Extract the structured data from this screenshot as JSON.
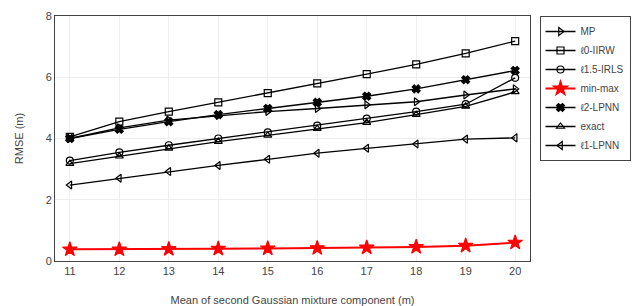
{
  "chart_data": {
    "type": "line",
    "x_label": "Mean of second Gaussian mixture component (m)",
    "y_label": "RMSE (m)",
    "x": [
      11,
      12,
      13,
      14,
      15,
      16,
      17,
      18,
      19,
      20
    ],
    "series": [
      {
        "name": "MP",
        "color": "black",
        "marker": "triangle-right",
        "line_style": "solid",
        "values": [
          4.0,
          4.35,
          4.6,
          4.75,
          4.88,
          4.98,
          5.1,
          5.2,
          5.42,
          5.62
        ]
      },
      {
        "name": "ℓ0-IIRW",
        "color": "black",
        "marker": "square",
        "line_style": "solid",
        "values": [
          4.05,
          4.55,
          4.88,
          5.18,
          5.48,
          5.8,
          6.1,
          6.42,
          6.78,
          7.18
        ]
      },
      {
        "name": "ℓ1.5-IRLS",
        "color": "black",
        "marker": "circle",
        "line_style": "solid",
        "values": [
          3.28,
          3.55,
          3.78,
          4.0,
          4.2,
          4.42,
          4.65,
          4.88,
          5.12,
          5.98
        ]
      },
      {
        "name": "min-max",
        "color": "red",
        "marker": "star",
        "line_style": "solid",
        "values": [
          0.38,
          0.38,
          0.39,
          0.4,
          0.41,
          0.42,
          0.44,
          0.46,
          0.5,
          0.6
        ]
      },
      {
        "name": "ℓ2-LPNN",
        "color": "black",
        "marker": "x",
        "line_style": "solid",
        "values": [
          4.0,
          4.3,
          4.55,
          4.78,
          4.98,
          5.18,
          5.38,
          5.62,
          5.92,
          6.22
        ]
      },
      {
        "name": "exact",
        "color": "black",
        "marker": "triangle-up",
        "line_style": "solid",
        "values": [
          3.18,
          3.42,
          3.68,
          3.9,
          4.1,
          4.32,
          4.52,
          4.78,
          5.05,
          5.52
        ]
      },
      {
        "name": "ℓ1-LPNN",
        "color": "black",
        "marker": "triangle-left",
        "line_style": "solid",
        "values": [
          2.48,
          2.7,
          2.92,
          3.12,
          3.32,
          3.52,
          3.68,
          3.82,
          3.98,
          4.02
        ]
      }
    ],
    "xlim": [
      10.7,
      20.3
    ],
    "xticks": [
      11,
      12,
      13,
      14,
      15,
      16,
      17,
      18,
      19,
      20
    ],
    "ylim": [
      0,
      8
    ],
    "yticks": [
      0,
      2,
      4,
      6,
      8
    ],
    "grid": true,
    "legend": "right"
  }
}
